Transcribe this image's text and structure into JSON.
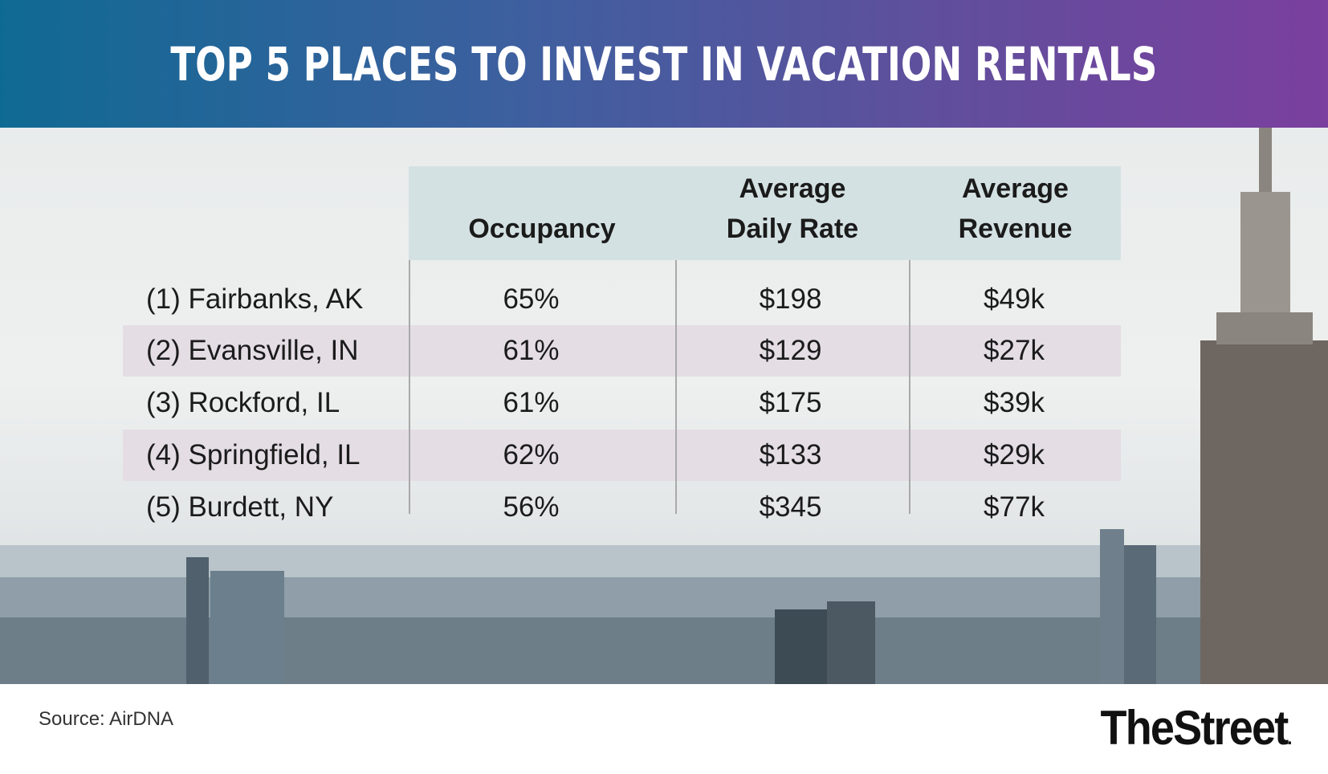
{
  "title": "TOP 5 PLACES TO INVEST IN VACATION RENTALS",
  "table": {
    "headers": {
      "occupancy": "Occupancy",
      "adr_line1": "Average",
      "adr_line2": "Daily Rate",
      "rev_line1": "Average",
      "rev_line2": "Revenue"
    },
    "rows": [
      {
        "city": "(1) Fairbanks, AK",
        "occupancy": "65%",
        "adr": "$198",
        "revenue": "$49k"
      },
      {
        "city": "(2) Evansville, IN",
        "occupancy": "61%",
        "adr": "$129",
        "revenue": "$27k"
      },
      {
        "city": "(3) Rockford, IL",
        "occupancy": "61%",
        "adr": "$175",
        "revenue": "$39k"
      },
      {
        "city": "(4) Springfield, IL",
        "occupancy": "62%",
        "adr": "$133",
        "revenue": "$29k"
      },
      {
        "city": "(5) Burdett, NY",
        "occupancy": "56%",
        "adr": "$345",
        "revenue": "$77k"
      }
    ]
  },
  "chart_data": {
    "type": "table",
    "title": "TOP 5 PLACES TO INVEST IN VACATION RENTALS",
    "columns": [
      "",
      "Occupancy",
      "Average Daily Rate",
      "Average Revenue"
    ],
    "rows": [
      [
        "(1) Fairbanks, AK",
        "65%",
        "$198",
        "$49k"
      ],
      [
        "(2) Evansville, IN",
        "61%",
        "$129",
        "$27k"
      ],
      [
        "(3) Rockford, IL",
        "61%",
        "$175",
        "$39k"
      ],
      [
        "(4) Springfield, IL",
        "62%",
        "$133",
        "$29k"
      ],
      [
        "(5) Burdett, NY",
        "56%",
        "$345",
        "$77k"
      ]
    ]
  },
  "footer": {
    "source": "Source: AirDNA",
    "brand": "TheStreet",
    "brand_dot": "."
  },
  "colors": {
    "header_start": "#0f6a93",
    "header_end": "#7b3f9e",
    "table_header_bg": "#d4e1e3",
    "row_band": "#e4dde4"
  }
}
